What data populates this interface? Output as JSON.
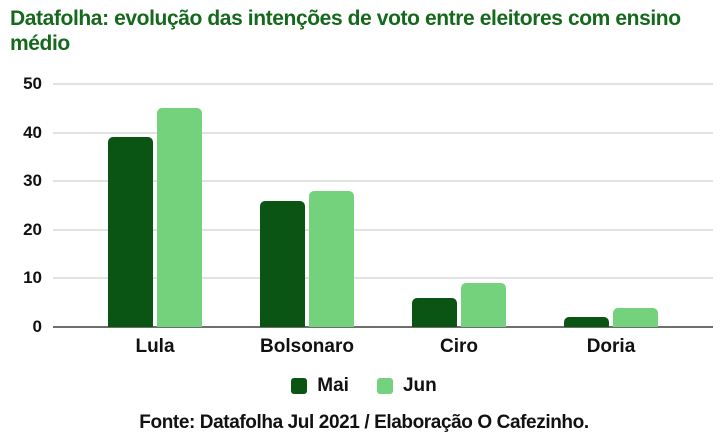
{
  "page": {
    "title": "Datafolha: evolução das intenções de voto entre eleitores com ensino médio",
    "footer": "Fonte: Datafolha Jul 2021 / Elaboração O Cafezinho."
  },
  "colors": {
    "title_green": "#15691d",
    "mai_dark_green": "#0a5514",
    "jun_light_green": "#74d17c",
    "gridline_gray": "#e2e2e2",
    "axis_line_gray": "#6e6e6e",
    "label_black": "#111111"
  },
  "chart_data": {
    "type": "bar",
    "title": "Datafolha: evolução das intenções de voto entre eleitores com ensino médio",
    "categories": [
      "Lula",
      "Bolsonaro",
      "Ciro",
      "Doria"
    ],
    "series": [
      {
        "name": "Mai",
        "color_key": "mai_dark_green",
        "values": [
          39,
          26,
          6,
          2
        ]
      },
      {
        "name": "Jun",
        "color_key": "jun_light_green",
        "values": [
          45,
          28,
          9,
          4
        ]
      }
    ],
    "xlabel": "",
    "ylabel": "",
    "ylim": [
      0,
      50
    ],
    "yticks": [
      0,
      10,
      20,
      30,
      40,
      50
    ],
    "grid": true,
    "legend_position": "bottom"
  }
}
